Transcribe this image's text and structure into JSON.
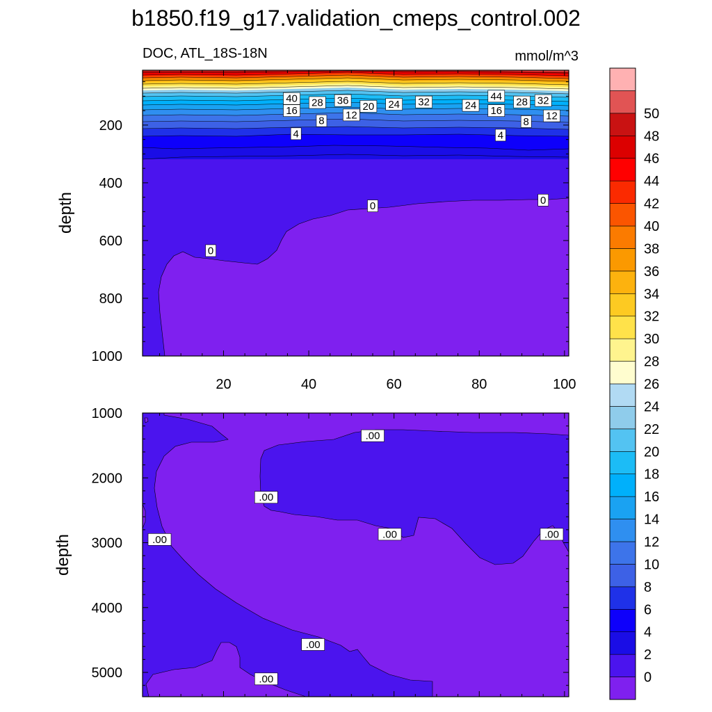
{
  "figure": {
    "title": "b1850.f19_g17.validation_cmeps_control.002",
    "variable_label": "DOC, ATL_18S-18N",
    "units": "mmol/m^3"
  },
  "chart_data": [
    {
      "type": "contour",
      "panel": "upper",
      "ylabel": "depth",
      "xlabel": "",
      "xlim": [
        1,
        101
      ],
      "ylim": [
        1000,
        10
      ],
      "xticks": [
        20,
        40,
        60,
        80,
        100
      ],
      "xtick_labels": [
        "20",
        "40",
        "60",
        "80",
        "100"
      ],
      "yticks": [
        200,
        400,
        600,
        800,
        1000
      ],
      "ytick_labels": [
        "200",
        "400",
        "600",
        "800",
        "1000"
      ],
      "contour_labels": [
        {
          "text": "40",
          "x": 36,
          "y": 108
        },
        {
          "text": "28",
          "x": 42,
          "y": 122
        },
        {
          "text": "36",
          "x": 48,
          "y": 115
        },
        {
          "text": "20",
          "x": 54,
          "y": 135
        },
        {
          "text": "24",
          "x": 60,
          "y": 128
        },
        {
          "text": "32",
          "x": 67,
          "y": 120
        },
        {
          "text": "24",
          "x": 78,
          "y": 132
        },
        {
          "text": "44",
          "x": 84,
          "y": 100
        },
        {
          "text": "28",
          "x": 90,
          "y": 120
        },
        {
          "text": "32",
          "x": 95,
          "y": 115
        },
        {
          "text": "16",
          "x": 36,
          "y": 150
        },
        {
          "text": "12",
          "x": 50,
          "y": 165
        },
        {
          "text": "16",
          "x": 84,
          "y": 150
        },
        {
          "text": "12",
          "x": 97,
          "y": 168
        },
        {
          "text": "8",
          "x": 43,
          "y": 185
        },
        {
          "text": "8",
          "x": 91,
          "y": 188
        },
        {
          "text": "4",
          "x": 37,
          "y": 230
        },
        {
          "text": "4",
          "x": 85,
          "y": 235
        },
        {
          "text": "0",
          "x": 55,
          "y": 480
        },
        {
          "text": "0",
          "x": 95,
          "y": 460
        },
        {
          "text": "0",
          "x": 17,
          "y": 635
        }
      ]
    },
    {
      "type": "contour",
      "panel": "lower",
      "ylabel": "depth",
      "xlabel": "",
      "xlim": [
        1,
        101
      ],
      "ylim": [
        5375,
        1000
      ],
      "yticks": [
        1000,
        2000,
        3000,
        4000,
        5000
      ],
      "ytick_labels": [
        "1000",
        "2000",
        "3000",
        "4000",
        "5000"
      ],
      "contour_labels": [
        {
          "text": ".00",
          "x": 55,
          "y": 1350
        },
        {
          "text": ".00",
          "x": 30,
          "y": 2300
        },
        {
          "text": ".00",
          "x": 59,
          "y": 2870
        },
        {
          "text": ".00",
          "x": 97,
          "y": 2870
        },
        {
          "text": ".00",
          "x": 5,
          "y": 2950
        },
        {
          "text": ".00",
          "x": 41,
          "y": 4570
        },
        {
          "text": ".00",
          "x": 30,
          "y": 5100
        }
      ]
    }
  ],
  "colorbar": {
    "levels": [
      "0",
      "2",
      "4",
      "6",
      "8",
      "10",
      "12",
      "14",
      "16",
      "18",
      "20",
      "22",
      "24",
      "26",
      "28",
      "30",
      "32",
      "34",
      "36",
      "38",
      "40",
      "42",
      "44",
      "46",
      "48",
      "50"
    ],
    "colors": [
      "#7f20ef",
      "#4b14ee",
      "#1a0de6",
      "#0e00fb",
      "#1f31e8",
      "#3d61e6",
      "#3d74ea",
      "#2f8ff0",
      "#1aa2f2",
      "#00b0fb",
      "#1cbcf6",
      "#53c3f2",
      "#8fcceb",
      "#b1daf3",
      "#fffdcf",
      "#fff48e",
      "#ffe24a",
      "#fdca22",
      "#fdb20e",
      "#fb9900",
      "#fb7b00",
      "#fb5500",
      "#fb2a00",
      "#ff0000",
      "#dc0000",
      "#c91212",
      "#e15454",
      "#ffb1b2"
    ]
  }
}
